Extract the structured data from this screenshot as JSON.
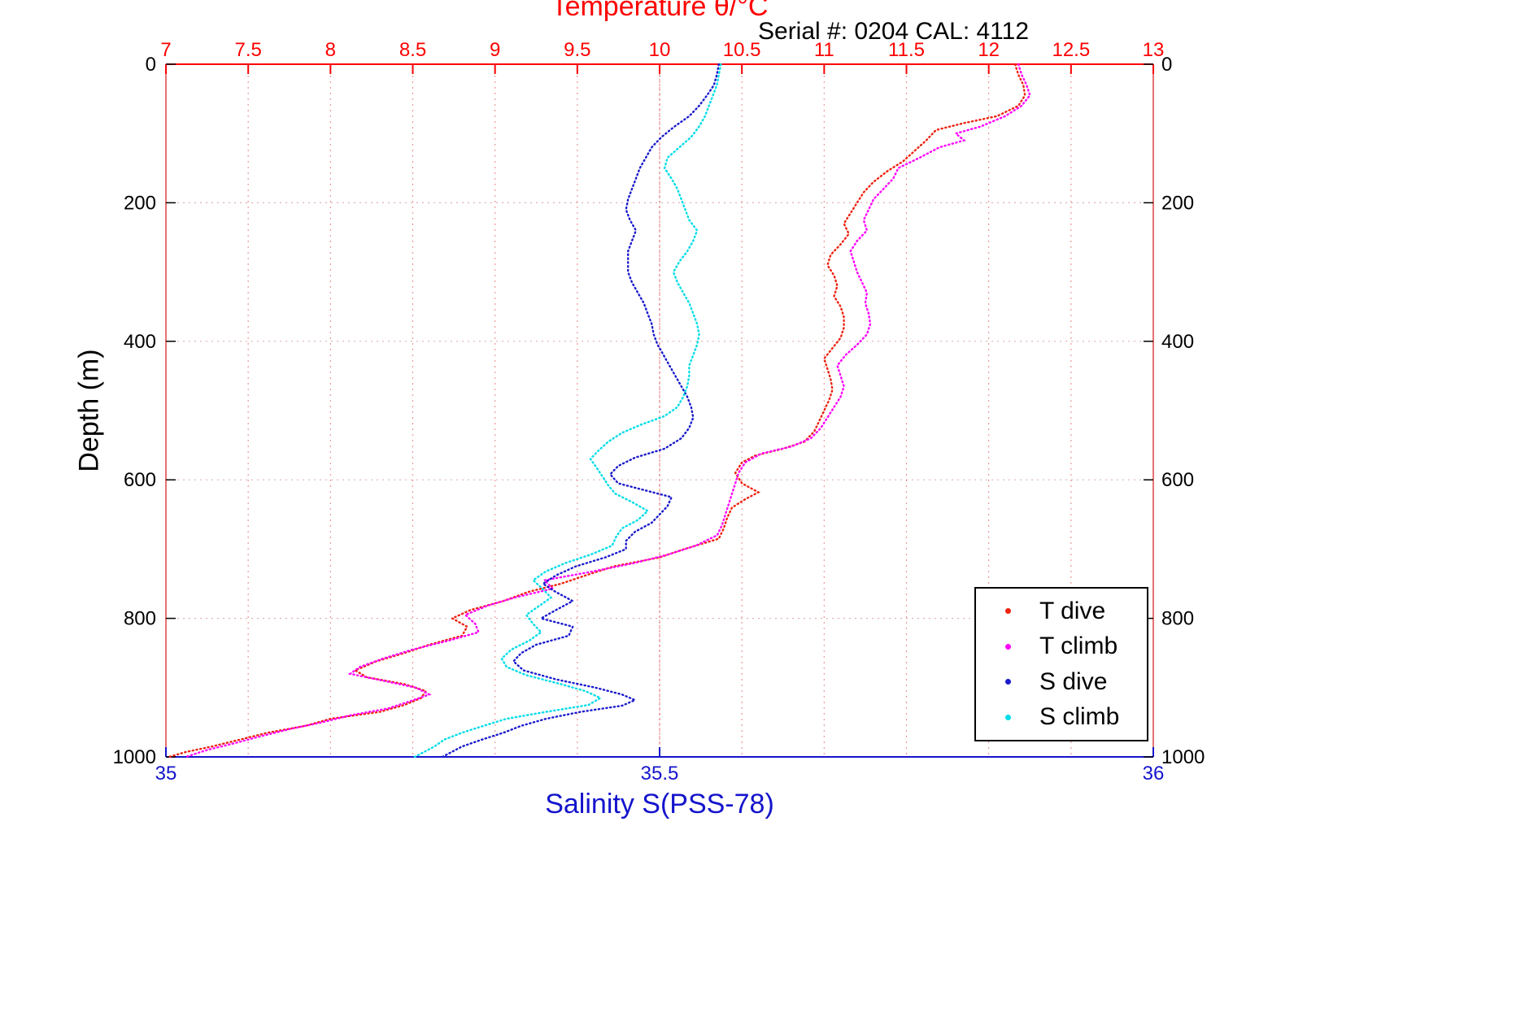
{
  "chart_data": {
    "type": "scatter",
    "title": "Temperature θ/°C",
    "annotation": "Serial #: 0204  CAL: 4112",
    "x_top": {
      "label": "Temperature θ/°C",
      "range": [
        7,
        13
      ],
      "ticks": [
        7,
        7.5,
        8,
        8.5,
        9,
        9.5,
        10,
        10.5,
        11,
        11.5,
        12,
        12.5,
        13
      ],
      "color": "#ff0000"
    },
    "x_bottom": {
      "label": "Salinity S(PSS-78)",
      "range": [
        35,
        36
      ],
      "ticks": [
        35,
        35.5,
        36
      ],
      "color": "#1414cc"
    },
    "y": {
      "label": "Depth (m)",
      "range": [
        0,
        1000
      ],
      "ticks": [
        0,
        200,
        400,
        600,
        800,
        1000
      ],
      "reversed": true,
      "color": "#000000"
    },
    "grid": true,
    "legend": {
      "position": "lower-right",
      "entries": [
        "T dive",
        "T climb",
        "S dive",
        "S climb"
      ]
    },
    "series": [
      {
        "name": "T dive",
        "x_axis": "top",
        "color": "#ee2211",
        "points": [
          [
            0,
            12.16
          ],
          [
            15,
            12.18
          ],
          [
            30,
            12.21
          ],
          [
            45,
            12.22
          ],
          [
            60,
            12.18
          ],
          [
            75,
            12.05
          ],
          [
            85,
            11.85
          ],
          [
            95,
            11.68
          ],
          [
            110,
            11.62
          ],
          [
            125,
            11.55
          ],
          [
            140,
            11.48
          ],
          [
            155,
            11.38
          ],
          [
            170,
            11.3
          ],
          [
            185,
            11.24
          ],
          [
            200,
            11.2
          ],
          [
            215,
            11.16
          ],
          [
            230,
            11.12
          ],
          [
            245,
            11.15
          ],
          [
            260,
            11.1
          ],
          [
            275,
            11.04
          ],
          [
            290,
            11.02
          ],
          [
            305,
            11.06
          ],
          [
            320,
            11.08
          ],
          [
            335,
            11.06
          ],
          [
            350,
            11.1
          ],
          [
            365,
            11.12
          ],
          [
            380,
            11.12
          ],
          [
            395,
            11.1
          ],
          [
            410,
            11.05
          ],
          [
            425,
            11.0
          ],
          [
            440,
            11.02
          ],
          [
            455,
            11.04
          ],
          [
            470,
            11.05
          ],
          [
            485,
            11.03
          ],
          [
            500,
            11.0
          ],
          [
            515,
            10.97
          ],
          [
            530,
            10.94
          ],
          [
            545,
            10.88
          ],
          [
            555,
            10.75
          ],
          [
            565,
            10.58
          ],
          [
            575,
            10.5
          ],
          [
            590,
            10.46
          ],
          [
            605,
            10.5
          ],
          [
            618,
            10.6
          ],
          [
            628,
            10.52
          ],
          [
            640,
            10.44
          ],
          [
            655,
            10.41
          ],
          [
            670,
            10.39
          ],
          [
            685,
            10.36
          ],
          [
            700,
            10.15
          ],
          [
            712,
            10.0
          ],
          [
            725,
            9.72
          ],
          [
            738,
            9.55
          ],
          [
            750,
            9.4
          ],
          [
            762,
            9.2
          ],
          [
            775,
            9.05
          ],
          [
            788,
            8.85
          ],
          [
            800,
            8.74
          ],
          [
            812,
            8.83
          ],
          [
            825,
            8.8
          ],
          [
            838,
            8.6
          ],
          [
            850,
            8.45
          ],
          [
            862,
            8.28
          ],
          [
            875,
            8.15
          ],
          [
            885,
            8.22
          ],
          [
            895,
            8.45
          ],
          [
            905,
            8.58
          ],
          [
            915,
            8.55
          ],
          [
            925,
            8.45
          ],
          [
            935,
            8.3
          ],
          [
            945,
            8.0
          ],
          [
            955,
            7.85
          ],
          [
            965,
            7.62
          ],
          [
            975,
            7.45
          ],
          [
            985,
            7.28
          ],
          [
            993,
            7.12
          ],
          [
            1000,
            7.02
          ]
        ]
      },
      {
        "name": "T climb",
        "x_axis": "top",
        "color": "#ff00ff",
        "points": [
          [
            0,
            12.18
          ],
          [
            15,
            12.2
          ],
          [
            30,
            12.23
          ],
          [
            45,
            12.25
          ],
          [
            60,
            12.2
          ],
          [
            75,
            12.1
          ],
          [
            90,
            11.95
          ],
          [
            100,
            11.8
          ],
          [
            110,
            11.85
          ],
          [
            120,
            11.7
          ],
          [
            135,
            11.58
          ],
          [
            150,
            11.45
          ],
          [
            165,
            11.42
          ],
          [
            180,
            11.36
          ],
          [
            195,
            11.3
          ],
          [
            210,
            11.27
          ],
          [
            225,
            11.24
          ],
          [
            240,
            11.26
          ],
          [
            255,
            11.2
          ],
          [
            270,
            11.16
          ],
          [
            285,
            11.18
          ],
          [
            300,
            11.2
          ],
          [
            315,
            11.23
          ],
          [
            330,
            11.26
          ],
          [
            345,
            11.25
          ],
          [
            360,
            11.27
          ],
          [
            375,
            11.28
          ],
          [
            390,
            11.26
          ],
          [
            405,
            11.2
          ],
          [
            420,
            11.13
          ],
          [
            435,
            11.08
          ],
          [
            450,
            11.1
          ],
          [
            465,
            11.12
          ],
          [
            480,
            11.1
          ],
          [
            495,
            11.06
          ],
          [
            510,
            11.02
          ],
          [
            525,
            10.98
          ],
          [
            540,
            10.92
          ],
          [
            552,
            10.8
          ],
          [
            562,
            10.62
          ],
          [
            575,
            10.52
          ],
          [
            590,
            10.48
          ],
          [
            605,
            10.46
          ],
          [
            620,
            10.44
          ],
          [
            635,
            10.42
          ],
          [
            650,
            10.4
          ],
          [
            665,
            10.38
          ],
          [
            680,
            10.35
          ],
          [
            695,
            10.22
          ],
          [
            708,
            10.05
          ],
          [
            720,
            9.85
          ],
          [
            732,
            9.6
          ],
          [
            745,
            9.3
          ],
          [
            757,
            9.35
          ],
          [
            770,
            9.12
          ],
          [
            782,
            8.95
          ],
          [
            795,
            8.82
          ],
          [
            808,
            8.88
          ],
          [
            820,
            8.9
          ],
          [
            832,
            8.72
          ],
          [
            845,
            8.5
          ],
          [
            858,
            8.32
          ],
          [
            870,
            8.18
          ],
          [
            880,
            8.12
          ],
          [
            890,
            8.32
          ],
          [
            900,
            8.52
          ],
          [
            910,
            8.6
          ],
          [
            920,
            8.48
          ],
          [
            930,
            8.35
          ],
          [
            940,
            8.12
          ],
          [
            950,
            7.95
          ],
          [
            960,
            7.75
          ],
          [
            970,
            7.58
          ],
          [
            980,
            7.42
          ],
          [
            990,
            7.25
          ],
          [
            1000,
            7.12
          ]
        ]
      },
      {
        "name": "S dive",
        "x_axis": "bottom",
        "color": "#1a1acd",
        "points": [
          [
            0,
            35.56
          ],
          [
            15,
            35.558
          ],
          [
            30,
            35.555
          ],
          [
            45,
            35.548
          ],
          [
            60,
            35.54
          ],
          [
            75,
            35.53
          ],
          [
            90,
            35.515
          ],
          [
            105,
            35.502
          ],
          [
            120,
            35.492
          ],
          [
            135,
            35.486
          ],
          [
            150,
            35.48
          ],
          [
            165,
            35.476
          ],
          [
            180,
            35.472
          ],
          [
            195,
            35.468
          ],
          [
            210,
            35.466
          ],
          [
            225,
            35.47
          ],
          [
            240,
            35.476
          ],
          [
            255,
            35.472
          ],
          [
            270,
            35.468
          ],
          [
            285,
            35.468
          ],
          [
            300,
            35.468
          ],
          [
            315,
            35.472
          ],
          [
            330,
            35.478
          ],
          [
            345,
            35.484
          ],
          [
            360,
            35.488
          ],
          [
            375,
            35.492
          ],
          [
            390,
            35.494
          ],
          [
            405,
            35.498
          ],
          [
            420,
            35.504
          ],
          [
            435,
            35.51
          ],
          [
            450,
            35.516
          ],
          [
            465,
            35.522
          ],
          [
            480,
            35.528
          ],
          [
            495,
            35.532
          ],
          [
            510,
            35.534
          ],
          [
            525,
            35.53
          ],
          [
            540,
            35.522
          ],
          [
            555,
            35.505
          ],
          [
            568,
            35.475
          ],
          [
            580,
            35.458
          ],
          [
            592,
            35.45
          ],
          [
            605,
            35.458
          ],
          [
            615,
            35.485
          ],
          [
            625,
            35.512
          ],
          [
            638,
            35.508
          ],
          [
            650,
            35.5
          ],
          [
            662,
            35.492
          ],
          [
            675,
            35.475
          ],
          [
            688,
            35.466
          ],
          [
            700,
            35.466
          ],
          [
            712,
            35.445
          ],
          [
            725,
            35.415
          ],
          [
            738,
            35.395
          ],
          [
            750,
            35.382
          ],
          [
            762,
            35.395
          ],
          [
            775,
            35.412
          ],
          [
            788,
            35.395
          ],
          [
            800,
            35.38
          ],
          [
            812,
            35.412
          ],
          [
            825,
            35.408
          ],
          [
            838,
            35.375
          ],
          [
            850,
            35.36
          ],
          [
            862,
            35.352
          ],
          [
            875,
            35.362
          ],
          [
            888,
            35.395
          ],
          [
            900,
            35.435
          ],
          [
            910,
            35.462
          ],
          [
            918,
            35.475
          ],
          [
            926,
            35.462
          ],
          [
            935,
            35.42
          ],
          [
            945,
            35.385
          ],
          [
            955,
            35.36
          ],
          [
            965,
            35.342
          ],
          [
            975,
            35.32
          ],
          [
            985,
            35.3
          ],
          [
            1000,
            35.28
          ]
        ]
      },
      {
        "name": "S climb",
        "x_axis": "bottom",
        "color": "#00dde8",
        "points": [
          [
            0,
            35.562
          ],
          [
            15,
            35.56
          ],
          [
            30,
            35.558
          ],
          [
            45,
            35.554
          ],
          [
            60,
            35.55
          ],
          [
            75,
            35.546
          ],
          [
            90,
            35.54
          ],
          [
            105,
            35.532
          ],
          [
            120,
            35.52
          ],
          [
            135,
            35.508
          ],
          [
            150,
            35.505
          ],
          [
            165,
            35.512
          ],
          [
            180,
            35.518
          ],
          [
            195,
            35.522
          ],
          [
            210,
            35.526
          ],
          [
            225,
            35.53
          ],
          [
            240,
            35.538
          ],
          [
            255,
            35.534
          ],
          [
            270,
            35.528
          ],
          [
            285,
            35.52
          ],
          [
            300,
            35.514
          ],
          [
            315,
            35.518
          ],
          [
            330,
            35.524
          ],
          [
            345,
            35.53
          ],
          [
            360,
            35.534
          ],
          [
            375,
            35.538
          ],
          [
            390,
            35.54
          ],
          [
            405,
            35.538
          ],
          [
            420,
            35.534
          ],
          [
            435,
            35.53
          ],
          [
            450,
            35.53
          ],
          [
            465,
            35.528
          ],
          [
            480,
            35.524
          ],
          [
            495,
            35.518
          ],
          [
            508,
            35.505
          ],
          [
            520,
            35.482
          ],
          [
            532,
            35.462
          ],
          [
            545,
            35.448
          ],
          [
            558,
            35.438
          ],
          [
            570,
            35.43
          ],
          [
            582,
            35.436
          ],
          [
            595,
            35.442
          ],
          [
            608,
            35.448
          ],
          [
            620,
            35.455
          ],
          [
            632,
            35.472
          ],
          [
            645,
            35.488
          ],
          [
            658,
            35.478
          ],
          [
            670,
            35.462
          ],
          [
            682,
            35.456
          ],
          [
            695,
            35.452
          ],
          [
            708,
            35.43
          ],
          [
            720,
            35.405
          ],
          [
            732,
            35.385
          ],
          [
            745,
            35.372
          ],
          [
            758,
            35.382
          ],
          [
            770,
            35.39
          ],
          [
            782,
            35.378
          ],
          [
            795,
            35.365
          ],
          [
            808,
            35.372
          ],
          [
            820,
            35.38
          ],
          [
            832,
            35.368
          ],
          [
            845,
            35.35
          ],
          [
            858,
            35.34
          ],
          [
            870,
            35.345
          ],
          [
            882,
            35.365
          ],
          [
            895,
            35.4
          ],
          [
            905,
            35.425
          ],
          [
            915,
            35.44
          ],
          [
            925,
            35.428
          ],
          [
            935,
            35.385
          ],
          [
            945,
            35.345
          ],
          [
            955,
            35.322
          ],
          [
            965,
            35.3
          ],
          [
            975,
            35.282
          ],
          [
            985,
            35.272
          ],
          [
            1000,
            35.252
          ]
        ]
      }
    ]
  }
}
